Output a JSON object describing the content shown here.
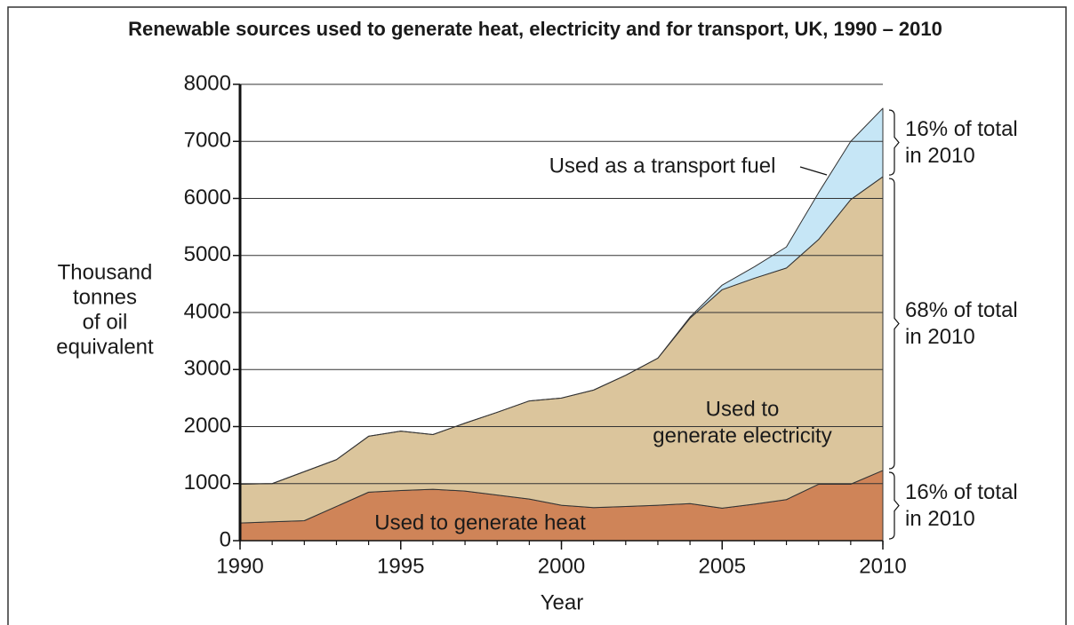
{
  "chart_data": {
    "type": "stacked_area",
    "title": "Renewable sources used to generate heat, electricity and for transport, UK, 1990 – 2010",
    "y_label": [
      "Thousand",
      "tonnes",
      "of oil",
      "equivalent"
    ],
    "x_label": "Year",
    "x": [
      1990,
      1991,
      1992,
      1993,
      1994,
      1995,
      1996,
      1997,
      1998,
      1999,
      2000,
      2001,
      2002,
      2003,
      2004,
      2005,
      2006,
      2007,
      2008,
      2009,
      2010
    ],
    "series": [
      {
        "name": [
          "Used to generate heat"
        ],
        "color": "#cf8458",
        "values": [
          310,
          330,
          350,
          600,
          850,
          880,
          900,
          870,
          800,
          730,
          620,
          580,
          600,
          620,
          650,
          570,
          640,
          720,
          990,
          990,
          1230
        ]
      },
      {
        "name": [
          "Used to",
          "generate electricity"
        ],
        "color": "#dbc59c",
        "values": [
          680,
          670,
          860,
          820,
          980,
          1040,
          960,
          1190,
          1450,
          1720,
          1880,
          2060,
          2300,
          2580,
          3250,
          3830,
          3960,
          4060,
          4290,
          4990,
          5150
        ]
      },
      {
        "name": [
          "Used as a transport fuel"
        ],
        "color": "#c6e6f6",
        "values": [
          0,
          0,
          0,
          0,
          0,
          0,
          0,
          0,
          0,
          0,
          0,
          0,
          0,
          0,
          20,
          80,
          200,
          370,
          820,
          1020,
          1200
        ]
      }
    ],
    "brackets": [
      [
        "16% of total",
        "in 2010"
      ],
      [
        "68% of total",
        "in 2010"
      ],
      [
        "16% of total",
        "in 2010"
      ]
    ],
    "xlim": [
      1990,
      2010
    ],
    "xticks": [
      1990,
      1995,
      2000,
      2005,
      2010
    ],
    "ylim": [
      0,
      8000
    ],
    "yticks": [
      0,
      1000,
      2000,
      3000,
      4000,
      5000,
      6000,
      7000,
      8000
    ],
    "grid": true
  }
}
